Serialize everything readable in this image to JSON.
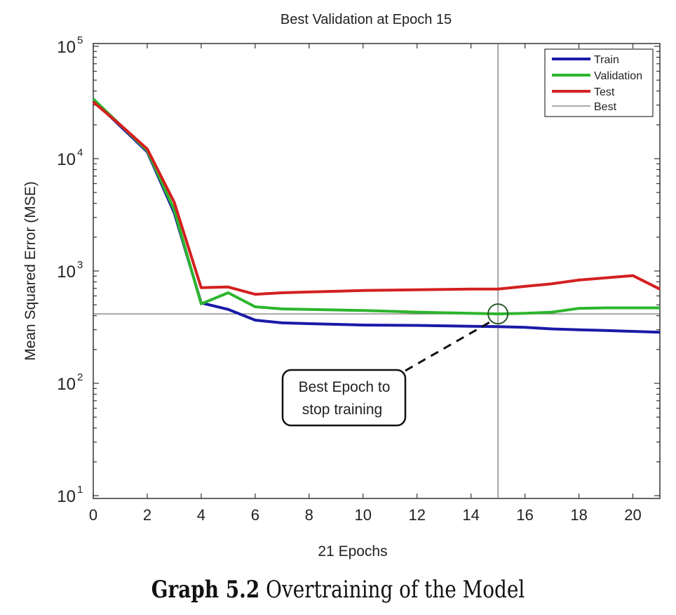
{
  "chart_data": {
    "type": "line",
    "title": "Best Validation at Epoch 15",
    "xlabel": "21  Epochs",
    "ylabel": "Mean Squared Error (MSE)",
    "yscale": "log",
    "xlim": [
      0,
      21
    ],
    "ylim": [
      10,
      100000
    ],
    "grid": false,
    "x_ticks": [
      "0",
      "2",
      "4",
      "6",
      "8",
      "10",
      "12",
      "14",
      "16",
      "18",
      "20"
    ],
    "y_ticks": [
      {
        "base": "10",
        "exp": "1",
        "value": 10
      },
      {
        "base": "10",
        "exp": "2",
        "value": 100
      },
      {
        "base": "10",
        "exp": "3",
        "value": 1000
      },
      {
        "base": "10",
        "exp": "4",
        "value": 10000
      },
      {
        "base": "10",
        "exp": "5",
        "value": 100000
      }
    ],
    "x": [
      0,
      1,
      2,
      3,
      4,
      5,
      6,
      7,
      8,
      9,
      10,
      11,
      12,
      13,
      14,
      15,
      16,
      17,
      18,
      19,
      20,
      21
    ],
    "series": [
      {
        "name": "Train",
        "color": "#1a1aa8",
        "values": [
          33000,
          19500,
          11500,
          3300,
          520,
          455,
          365,
          345,
          340,
          335,
          330,
          329,
          328,
          325,
          322,
          320,
          315,
          305,
          300,
          295,
          290,
          285
        ]
      },
      {
        "name": "Validation",
        "color": "#2db52d",
        "values": [
          34000,
          20000,
          11800,
          3500,
          510,
          640,
          480,
          460,
          455,
          450,
          445,
          438,
          430,
          425,
          420,
          415,
          420,
          430,
          465,
          470,
          470,
          470
        ]
      },
      {
        "name": "Test",
        "color": "#d42020",
        "values": [
          32000,
          20000,
          12200,
          4100,
          710,
          720,
          620,
          640,
          650,
          660,
          670,
          675,
          680,
          685,
          690,
          690,
          730,
          770,
          830,
          870,
          910,
          690
        ]
      }
    ],
    "best": {
      "name": "Best",
      "epoch": 15,
      "value": 415,
      "color": "#777777"
    },
    "legend": {
      "placement": "top-right",
      "entries": [
        "Train",
        "Validation",
        "Test",
        "Best"
      ]
    },
    "annotation": {
      "lines": [
        "Best Epoch to",
        "stop training"
      ],
      "points_to": {
        "epoch": 15,
        "value": 415
      }
    }
  },
  "caption": {
    "label": "Graph 5.2",
    "text": " Overtraining of the Model"
  }
}
